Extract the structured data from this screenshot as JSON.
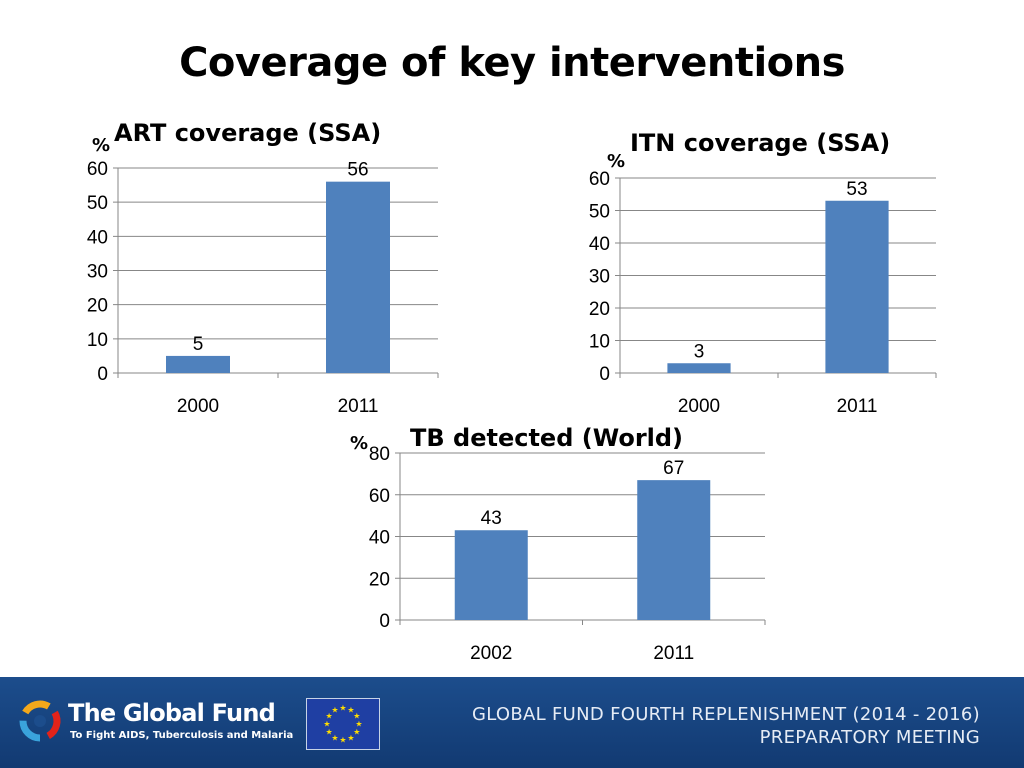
{
  "page_title": "Coverage of key interventions",
  "chart_data": [
    {
      "type": "bar",
      "title": "ART coverage (SSA)",
      "ylabel": "%",
      "categories": [
        "2000",
        "2011"
      ],
      "values": [
        5,
        56
      ],
      "data_labels": [
        "5",
        "56"
      ],
      "ylim": [
        0,
        60
      ],
      "yticks": [
        "0",
        "10",
        "20",
        "30",
        "40",
        "50",
        "60"
      ],
      "grid": true,
      "color": "#4f81bd"
    },
    {
      "type": "bar",
      "title": "ITN coverage (SSA)",
      "ylabel": "%",
      "categories": [
        "2000",
        "2011"
      ],
      "values": [
        3,
        53
      ],
      "data_labels": [
        "3",
        "53"
      ],
      "ylim": [
        0,
        60
      ],
      "yticks": [
        "0",
        "10",
        "20",
        "30",
        "40",
        "50",
        "60"
      ],
      "grid": true,
      "color": "#4f81bd"
    },
    {
      "type": "bar",
      "title": "TB detected (World)",
      "ylabel": "%",
      "categories": [
        "2002",
        "2011"
      ],
      "values": [
        43,
        67
      ],
      "data_labels": [
        "43",
        "67"
      ],
      "ylim": [
        0,
        80
      ],
      "yticks": [
        "0",
        "20",
        "40",
        "60",
        "80"
      ],
      "grid": true,
      "color": "#4f81bd"
    }
  ],
  "footer": {
    "logo_name": "The Global Fund",
    "logo_tagline": "To Fight AIDS, Tuberculosis and Malaria",
    "meeting_line1": "GLOBAL FUND FOURTH REPLENISHMENT (2014 - 2016)",
    "meeting_line2": "PREPARATORY MEETING",
    "flag_icon": "eu-flag-icon",
    "colors": {
      "band": "#1c4d8c",
      "flag": "#1f3fa3",
      "stars": "#ffdd00"
    }
  }
}
